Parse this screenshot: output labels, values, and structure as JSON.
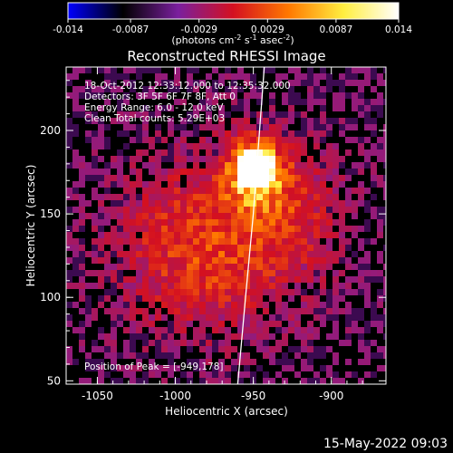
{
  "chart_data": {
    "type": "heatmap",
    "title": "Reconstructed RHESSI Image",
    "colorbar": {
      "ticks": [
        "-0.014",
        "-0.0087",
        "-0.0029",
        "0.0029",
        "0.0087",
        "0.014"
      ],
      "unit_main": "(photons cm",
      "unit_sup1": "-2",
      "unit_mid1": " s",
      "unit_sup2": "-1",
      "unit_mid2": " asec",
      "unit_sup3": "-2",
      "unit_end": ")",
      "range": [
        -0.014,
        0.014
      ],
      "colors": [
        "#0000ff",
        "#000000",
        "#7a1f9e",
        "#d41020",
        "#ff7800",
        "#ffee40",
        "#ffffff"
      ]
    },
    "xlabel": "Heliocentric X (arcsec)",
    "ylabel": "Heliocentric Y (arcsec)",
    "xlim": [
      -1070,
      -865
    ],
    "ylim": [
      48,
      238
    ],
    "xticks": [
      "-1050",
      "-1000",
      "-950",
      "-900"
    ],
    "yticks": [
      "50",
      "100",
      "150",
      "200"
    ],
    "annotations": {
      "time": "18-Oct-2012 12:33:12.000 to 12:35:32.000",
      "detectors": "Detectors: 3F 5F 6F 7F 8F, Att 0",
      "energy": "Energy Range: 6.0 - 12.0 keV",
      "clean": "Clean    Total counts: 5.29E+03",
      "peak": "Position of Peak = [-949,178]"
    },
    "peak": [
      -949,
      178
    ],
    "limb_points": [
      [
        -960,
        48
      ],
      [
        -955,
        100
      ],
      [
        -950,
        150
      ],
      [
        -946,
        200
      ],
      [
        -943,
        238
      ]
    ]
  },
  "footer_date": "15-May-2022 09:03"
}
